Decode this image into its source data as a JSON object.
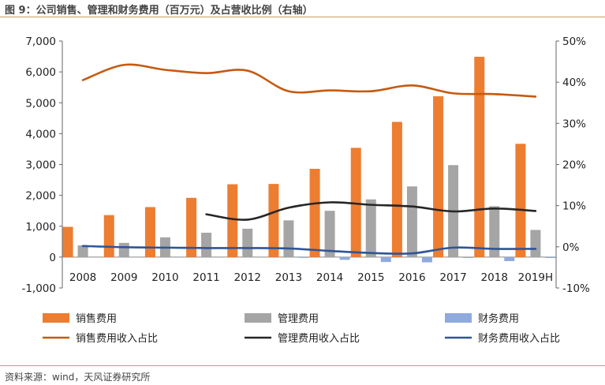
{
  "title": "图 9：公司销售、管理和财务费用（百万元）及占营收比例（右轴）",
  "source": "资料来源：wind，天风证券研究所",
  "chart_data": {
    "type": "bar",
    "categories": [
      "2008",
      "2009",
      "2010",
      "2011",
      "2012",
      "2013",
      "2014",
      "2015",
      "2016",
      "2017",
      "2018",
      "2019H"
    ],
    "left_axis": {
      "ylim": [
        -1000,
        7000
      ],
      "ticks": [
        "-1,000",
        "0",
        "1,000",
        "2,000",
        "3,000",
        "4,000",
        "5,000",
        "6,000",
        "7,000"
      ]
    },
    "right_axis": {
      "ylim": [
        -10,
        50
      ],
      "ticks": [
        "-10%",
        "0%",
        "10%",
        "20%",
        "30%",
        "40%",
        "50%"
      ]
    },
    "bar_series": [
      {
        "name": "销售费用",
        "color": "#ed7d31",
        "values": [
          980,
          1360,
          1620,
          1920,
          2360,
          2370,
          2860,
          3540,
          4380,
          5210,
          6490,
          3670
        ]
      },
      {
        "name": "管理费用",
        "color": "#a5a5a5",
        "values": [
          380,
          460,
          640,
          790,
          920,
          1190,
          1500,
          1870,
          2290,
          2980,
          1650,
          880
        ]
      },
      {
        "name": "财务费用",
        "color": "#8faadc",
        "values": [
          0,
          0,
          0,
          0,
          0,
          -20,
          -90,
          -160,
          -170,
          -30,
          -130,
          -30
        ]
      }
    ],
    "line_series": [
      {
        "name": "销售费用收入占比",
        "color": "#c55a11",
        "values": [
          40.5,
          44.2,
          43.0,
          42.2,
          42.8,
          37.8,
          38.0,
          37.8,
          39.2,
          37.3,
          37.1,
          36.5
        ]
      },
      {
        "name": "管理费用收入占比",
        "color": "#262626",
        "values": [
          null,
          null,
          null,
          7.9,
          6.6,
          9.5,
          10.8,
          10.2,
          9.8,
          8.6,
          9.3,
          8.7
        ]
      },
      {
        "name": "财务费用收入占比",
        "color": "#2f5597",
        "values": [
          0.2,
          -0.1,
          -0.2,
          -0.3,
          -0.3,
          -0.4,
          -1.0,
          -1.5,
          -1.6,
          -0.2,
          -0.5,
          -0.5
        ]
      }
    ],
    "legend_position": "bottom",
    "grid": false
  }
}
